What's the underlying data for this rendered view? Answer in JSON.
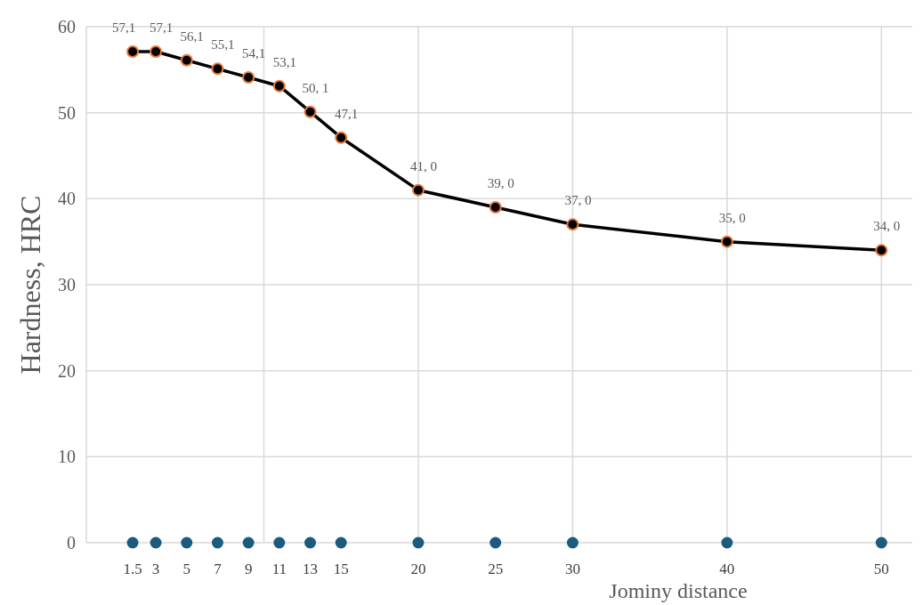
{
  "chart_data": {
    "type": "line",
    "xlabel": "Jominy distance",
    "ylabel": "Hardness, HRC",
    "x": [
      1.5,
      3,
      5,
      7,
      9,
      11,
      13,
      15,
      20,
      25,
      30,
      40,
      50
    ],
    "xlim": [
      -1.5,
      52
    ],
    "xticks": [
      1.5,
      3,
      5,
      7,
      9,
      11,
      13,
      15,
      20,
      25,
      30,
      40,
      50
    ],
    "ylim": [
      0,
      60
    ],
    "yticks": [
      0,
      10,
      20,
      30,
      40,
      50,
      60
    ],
    "grid": "y",
    "marker": "circle",
    "line_style": "solid",
    "ref_lines": [
      {
        "axis": "x",
        "value": 10,
        "color": "#d9d9d9"
      },
      {
        "axis": "x",
        "value": 20,
        "color": "#d9d9d9"
      },
      {
        "axis": "x",
        "value": 30,
        "color": "#d9d9d9"
      },
      {
        "axis": "x",
        "value": 40,
        "color": "#d9d9d9"
      },
      {
        "axis": "x",
        "value": 50,
        "color": "#d9d9d9"
      }
    ],
    "series": [
      {
        "color": "#000000",
        "values": [
          57.1,
          57.1,
          56.1,
          55.1,
          54.1,
          53.1,
          50.1,
          47.1,
          41.0,
          39.0,
          37.0,
          35.0,
          34.0
        ],
        "value_labels": [
          "57,1",
          "57,1",
          "56,1",
          "55,1",
          "54,1",
          "53,1",
          "50, 1",
          "47,1",
          "41, 0",
          "39, 0",
          "37, 0",
          "35, 0",
          "34, 0"
        ]
      },
      {
        "type": "scatter",
        "color": "#1b5c7e",
        "values": [
          0,
          0,
          0,
          0,
          0,
          0,
          0,
          0,
          0,
          0,
          0,
          0,
          0
        ]
      }
    ]
  }
}
